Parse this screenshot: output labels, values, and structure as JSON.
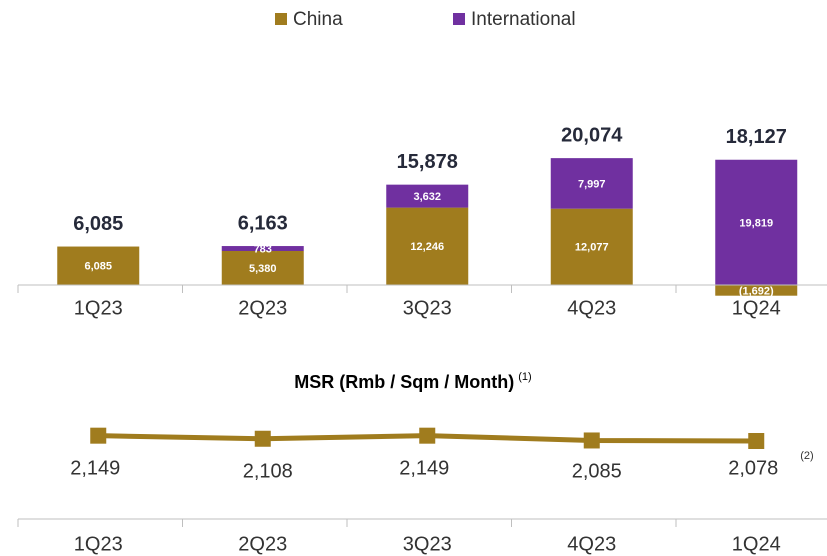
{
  "chart_data": [
    {
      "type": "bar",
      "stacked": true,
      "categories": [
        "1Q23",
        "2Q23",
        "3Q23",
        "4Q23",
        "1Q24"
      ],
      "series": [
        {
          "name": "China",
          "color": "#a07c1e",
          "values": [
            6085,
            5380,
            12246,
            12077,
            -1692
          ],
          "value_labels": [
            "6,085",
            "5,380",
            "12,246",
            "12,077",
            "(1,692)"
          ]
        },
        {
          "name": "International",
          "color": "#7030a0",
          "values": [
            null,
            783,
            3632,
            7997,
            19819
          ],
          "value_labels": [
            null,
            "783",
            "3,632",
            "7,997",
            "19,819"
          ]
        }
      ],
      "totals": [
        6085,
        6163,
        15878,
        20074,
        18127
      ],
      "total_labels": [
        "6,085",
        "6,163",
        "15,878",
        "20,074",
        "18,127"
      ],
      "legend": "top"
    },
    {
      "type": "line",
      "title": "MSR (Rmb / Sqm / Month)",
      "title_note": "(1)",
      "categories": [
        "1Q23",
        "2Q23",
        "3Q23",
        "4Q23",
        "1Q24"
      ],
      "color": "#a07c1e",
      "values": [
        2149,
        2108,
        2149,
        2085,
        2078
      ],
      "value_labels": [
        "2,149",
        "2,108",
        "2,149",
        "2,085",
        "2,078"
      ],
      "annotation": "(2)"
    }
  ]
}
